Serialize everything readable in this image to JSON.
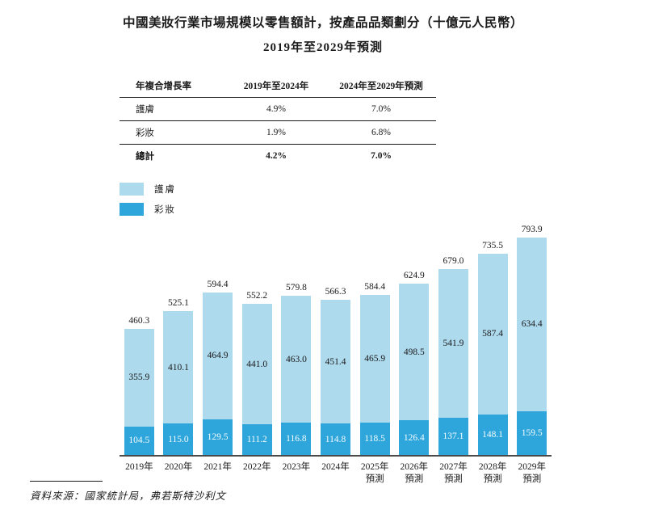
{
  "title": {
    "line1": "中國美妝行業市場規模以零售額計，按產品品類劃分（十億元人民幣）",
    "line2": "2019年至2029年預測"
  },
  "cagr_table": {
    "header": {
      "col1": "年複合增長率",
      "col2": "2019年至2024年",
      "col3": "2024年至2029年預測"
    },
    "rows": [
      {
        "label": "護膚",
        "period1": "4.9%",
        "period2": "7.0%"
      },
      {
        "label": "彩妝",
        "period1": "1.9%",
        "period2": "6.8%"
      },
      {
        "label": "總計",
        "period1": "4.2%",
        "period2": "7.0%"
      }
    ]
  },
  "legend": {
    "items": [
      {
        "label": "護膚",
        "color": "#AEDAEE"
      },
      {
        "label": "彩妝",
        "color": "#2EA6DB"
      }
    ]
  },
  "chart_data": {
    "type": "bar",
    "stacked": true,
    "title": "中國美妝行業市場規模以零售額計，按產品品類劃分（十億元人民幣）2019年至2029年預測",
    "unit": "十億元人民幣",
    "categories": [
      "2019年",
      "2020年",
      "2021年",
      "2022年",
      "2023年",
      "2024年",
      "2025年預測",
      "2026年預測",
      "2027年預測",
      "2028年預測",
      "2029年預測"
    ],
    "series": [
      {
        "name": "護膚",
        "color": "#AEDAEE",
        "values": [
          355.9,
          410.1,
          464.9,
          441.0,
          463.0,
          451.4,
          465.9,
          498.5,
          541.9,
          587.4,
          634.4
        ]
      },
      {
        "name": "彩妝",
        "color": "#2EA6DB",
        "values": [
          104.5,
          115.0,
          129.5,
          111.2,
          116.8,
          114.8,
          118.5,
          126.4,
          137.1,
          148.1,
          159.5
        ]
      }
    ],
    "totals": [
      460.3,
      525.1,
      594.4,
      552.2,
      579.8,
      566.3,
      584.4,
      624.9,
      679.0,
      735.5,
      793.9
    ],
    "ylim": [
      0,
      800
    ],
    "grid": false,
    "legend_position": "top-left",
    "value_labels": "segments-and-totals"
  },
  "source": "資料來源：國家統計局，弗若斯特沙利文"
}
